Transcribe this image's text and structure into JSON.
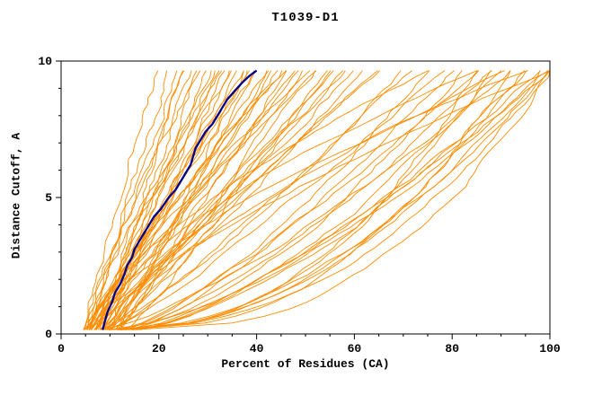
{
  "chart_data": {
    "type": "line",
    "title": "T1039-D1",
    "xlabel": "Percent of Residues (CA)",
    "ylabel": "Distance Cutoff, A",
    "xlim": [
      0,
      100
    ],
    "ylim": [
      0,
      10
    ],
    "x_major_ticks": [
      0,
      20,
      40,
      60,
      80,
      100
    ],
    "x_minor_step": 5,
    "y_major_ticks": [
      0,
      5,
      10
    ],
    "y_minor_step": 1,
    "grid": false,
    "legend": "none",
    "drawn_y_range": [
      0.15,
      9.65
    ],
    "colors": {
      "model_lines": "#ff8c00",
      "highlight_line": "#00008b",
      "axis": "#000000",
      "text": "#000000",
      "background": "#ffffff"
    },
    "highlight_series": {
      "name": "highlighted model",
      "color": "#00008b",
      "points": [
        [
          8.5,
          0.15
        ],
        [
          9,
          0.5
        ],
        [
          9.5,
          0.8
        ],
        [
          10.5,
          1.2
        ],
        [
          11,
          1.5
        ],
        [
          12,
          1.8
        ],
        [
          13,
          2.2
        ],
        [
          13.5,
          2.5
        ],
        [
          14.5,
          2.8
        ],
        [
          15,
          3.1
        ],
        [
          16,
          3.4
        ],
        [
          17,
          3.7
        ],
        [
          18,
          4.0
        ],
        [
          19,
          4.3
        ],
        [
          20.5,
          4.6
        ],
        [
          22,
          5.0
        ],
        [
          23.5,
          5.3
        ],
        [
          24.5,
          5.6
        ],
        [
          25.5,
          5.9
        ],
        [
          26.5,
          6.2
        ],
        [
          27,
          6.5
        ],
        [
          27.5,
          6.8
        ],
        [
          28.5,
          7.1
        ],
        [
          29.5,
          7.4
        ],
        [
          31,
          7.7
        ],
        [
          32,
          8.0
        ],
        [
          33,
          8.3
        ],
        [
          34,
          8.6
        ],
        [
          35.5,
          8.9
        ],
        [
          37,
          9.2
        ],
        [
          38.5,
          9.45
        ],
        [
          40,
          9.65
        ]
      ]
    },
    "model_curves": {
      "color": "#ff8c00",
      "count": 72,
      "note": "each descriptor = [percent_at_cutoff0, percent_at_cutoff10, shape_exponent]",
      "descriptors": [
        [
          5,
          20,
          1.1
        ],
        [
          6,
          22,
          1.0
        ],
        [
          5,
          24,
          1.05
        ],
        [
          7,
          25,
          0.95
        ],
        [
          6,
          26,
          1.1
        ],
        [
          8,
          27,
          1.0
        ],
        [
          5,
          28,
          1.15
        ],
        [
          7,
          28,
          0.9
        ],
        [
          6,
          30,
          1.0
        ],
        [
          9,
          30,
          1.1
        ],
        [
          5,
          31,
          0.95
        ],
        [
          8,
          32,
          1.05
        ],
        [
          6,
          33,
          1.0
        ],
        [
          10,
          34,
          1.1
        ],
        [
          7,
          35,
          0.9
        ],
        [
          5,
          35,
          1.2
        ],
        [
          9,
          36,
          1.0
        ],
        [
          6,
          37,
          1.05
        ],
        [
          11,
          38,
          0.95
        ],
        [
          8,
          38,
          1.1
        ],
        [
          5,
          39,
          1.0
        ],
        [
          10,
          40,
          0.9
        ],
        [
          7,
          40,
          1.15
        ],
        [
          6,
          42,
          1.0
        ],
        [
          12,
          42,
          1.05
        ],
        [
          9,
          43,
          0.95
        ],
        [
          5,
          44,
          1.1
        ],
        [
          8,
          45,
          1.0
        ],
        [
          11,
          46,
          0.9
        ],
        [
          6,
          46,
          1.2
        ],
        [
          10,
          48,
          1.0
        ],
        [
          7,
          48,
          1.05
        ],
        [
          12,
          50,
          0.95
        ],
        [
          5,
          50,
          1.1
        ],
        [
          9,
          52,
          1.0
        ],
        [
          6,
          52,
          1.15
        ],
        [
          13,
          54,
          0.9
        ],
        [
          8,
          55,
          1.0
        ],
        [
          10,
          56,
          1.05
        ],
        [
          6,
          58,
          0.95
        ],
        [
          12,
          58,
          1.1
        ],
        [
          7,
          60,
          1.0
        ],
        [
          9,
          62,
          0.9
        ],
        [
          11,
          64,
          1.05
        ],
        [
          5,
          65,
          1.0
        ],
        [
          8,
          70,
          0.8
        ],
        [
          10,
          72,
          0.9
        ],
        [
          12,
          75,
          0.7
        ],
        [
          9,
          78,
          0.85
        ],
        [
          14,
          80,
          0.75
        ],
        [
          10,
          82,
          0.6
        ],
        [
          13,
          85,
          0.8
        ],
        [
          11,
          88,
          0.7
        ],
        [
          15,
          90,
          0.65
        ],
        [
          9,
          92,
          0.75
        ],
        [
          12,
          95,
          0.6
        ],
        [
          14,
          98,
          0.7
        ],
        [
          10,
          100,
          0.65
        ],
        [
          13,
          100,
          0.55
        ],
        [
          16,
          100,
          0.75
        ],
        [
          10,
          100,
          0.45
        ],
        [
          12,
          98,
          0.5
        ],
        [
          15,
          100,
          0.4
        ],
        [
          11,
          95,
          0.48
        ],
        [
          13,
          92,
          0.42
        ],
        [
          14,
          88,
          0.5
        ],
        [
          12,
          85,
          0.45
        ],
        [
          6,
          75,
          1.5
        ],
        [
          8,
          85,
          1.6
        ],
        [
          7,
          95,
          1.5
        ],
        [
          9,
          100,
          1.4
        ],
        [
          10,
          90,
          1.35
        ]
      ]
    }
  }
}
